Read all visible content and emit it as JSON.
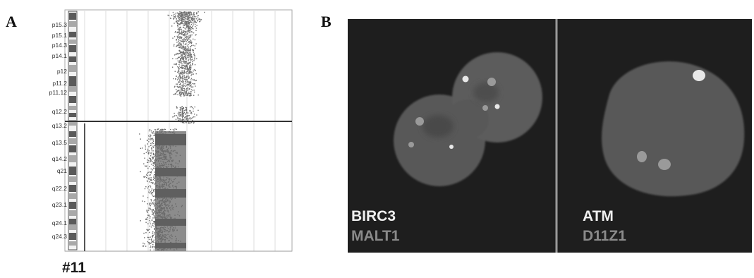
{
  "panels": {
    "a_letter": "A",
    "b_letter": "B",
    "chromosome_label": "#11"
  },
  "ideogram": {
    "bands": [
      "p15.3",
      "p15.1",
      "p14.3",
      "p14.1",
      "p12",
      "p11.2",
      "p11.12",
      "q12.2",
      "q13.2",
      "q13.5",
      "q14.2",
      "q21",
      "q22.2",
      "q23.1",
      "q24.1",
      "q24.3"
    ]
  },
  "fish": {
    "left_probe_1": "BIRC3",
    "left_probe_2": "MALT1",
    "right_probe_1": "ATM",
    "right_probe_2": "D11Z1"
  },
  "colors": {
    "background_fish": "#1e1e1e",
    "nucleus": "#595959",
    "signal_bright": "#e8e8e8",
    "signal_dim": "#9a9a9a",
    "scatter": "#6e6e6e",
    "text_bright": "#f0f0f0",
    "text_dim": "#8a8a8a"
  }
}
